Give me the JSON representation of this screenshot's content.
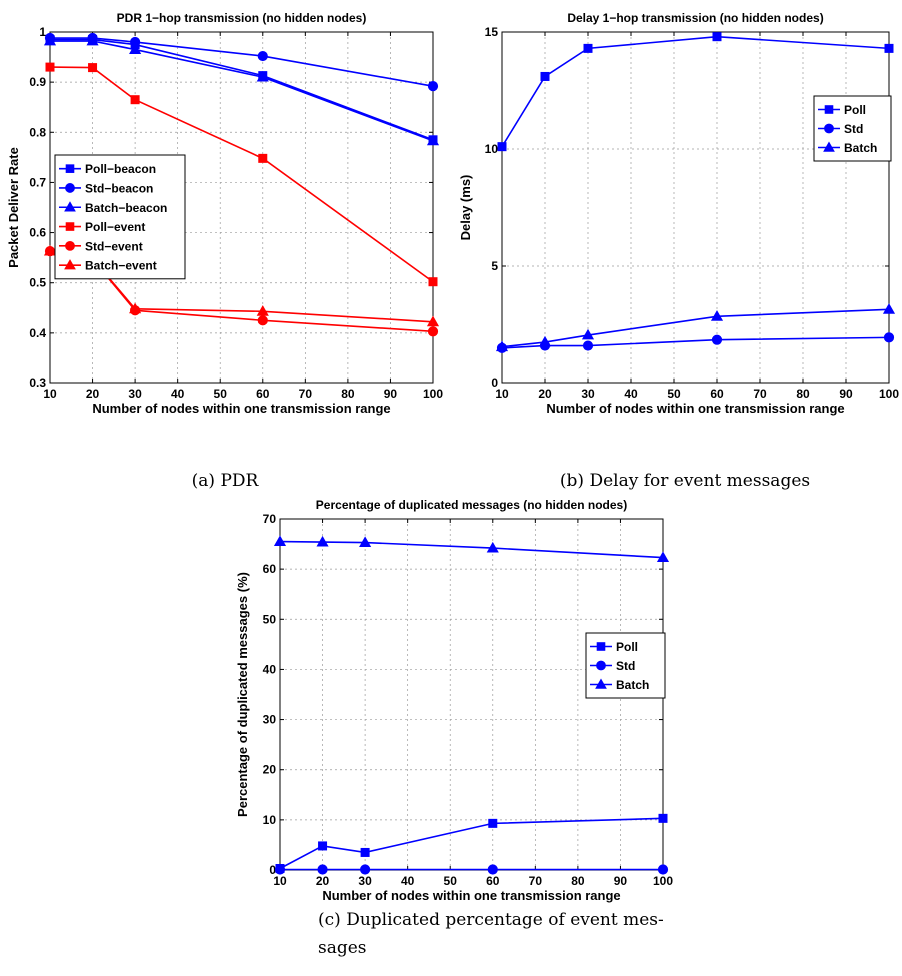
{
  "captions": {
    "a": "(a)  PDR",
    "b": "(b)  Delay for event messages",
    "c_line1": "(c)  Duplicated  percentage  of  event  mes-",
    "c_line2": "sages"
  },
  "chart_data": [
    {
      "id": "pdr",
      "type": "line",
      "title": "PDR 1−hop transmission (no hidden nodes)",
      "xlabel": "Number of nodes within one transmission range",
      "ylabel": "Packet Deliver Rate",
      "xlim": [
        10,
        100
      ],
      "ylim": [
        0.3,
        1
      ],
      "xticks": [
        10,
        20,
        30,
        40,
        50,
        60,
        70,
        80,
        90,
        100
      ],
      "yticks": [
        0.3,
        0.4,
        0.5,
        0.6,
        0.7,
        0.8,
        0.9,
        1
      ],
      "ytick_labels": [
        "0.3",
        "0.4",
        "0.5",
        "0.6",
        "0.7",
        "0.8",
        "0.9",
        "1"
      ],
      "grid": true,
      "legend_position": "middle-left",
      "x": [
        10,
        20,
        30,
        60,
        100
      ],
      "series": [
        {
          "name": "Poll−beacon",
          "color": "#0000ff",
          "marker": "square",
          "values": [
            0.985,
            0.985,
            0.975,
            0.913,
            0.785
          ]
        },
        {
          "name": "Std−beacon",
          "color": "#0000ff",
          "marker": "circle",
          "values": [
            0.988,
            0.988,
            0.98,
            0.952,
            0.892
          ]
        },
        {
          "name": "Batch−beacon",
          "color": "#0000ff",
          "marker": "triangle",
          "values": [
            0.982,
            0.982,
            0.965,
            0.91,
            0.783
          ]
        },
        {
          "name": "Poll−event",
          "color": "#ff0000",
          "marker": "square",
          "values": [
            0.93,
            0.929,
            0.865,
            0.748,
            0.502
          ]
        },
        {
          "name": "Std−event",
          "color": "#ff0000",
          "marker": "circle",
          "values": [
            0.563,
            0.547,
            0.445,
            0.425,
            0.403
          ]
        },
        {
          "name": "Batch−event",
          "color": "#ff0000",
          "marker": "triangle",
          "values": [
            0.563,
            0.548,
            0.448,
            0.443,
            0.422
          ]
        }
      ]
    },
    {
      "id": "delay",
      "type": "line",
      "title": "Delay 1−hop transmission (no hidden nodes)",
      "xlabel": "Number of nodes within one transmission range",
      "ylabel": "Delay (ms)",
      "xlim": [
        10,
        100
      ],
      "ylim": [
        0,
        15
      ],
      "xticks": [
        10,
        20,
        30,
        40,
        50,
        60,
        70,
        80,
        90,
        100
      ],
      "yticks": [
        0,
        5,
        10,
        15
      ],
      "ytick_labels": [
        "0",
        "5",
        "10",
        "15"
      ],
      "grid": true,
      "legend_position": "top-right",
      "x": [
        10,
        20,
        30,
        60,
        100
      ],
      "series": [
        {
          "name": "Poll",
          "color": "#0000ff",
          "marker": "square",
          "values": [
            10.1,
            13.1,
            14.3,
            14.8,
            14.3
          ]
        },
        {
          "name": "Std",
          "color": "#0000ff",
          "marker": "circle",
          "values": [
            1.5,
            1.6,
            1.6,
            1.85,
            1.95
          ]
        },
        {
          "name": "Batch",
          "color": "#0000ff",
          "marker": "triangle",
          "values": [
            1.55,
            1.75,
            2.05,
            2.85,
            3.15
          ]
        }
      ]
    },
    {
      "id": "dup",
      "type": "line",
      "title": "Percentage of duplicated messages (no hidden nodes)",
      "xlabel": "Number of nodes within one transmission range",
      "ylabel": "Percentage of duplicated messages (%)",
      "xlim": [
        10,
        100
      ],
      "ylim": [
        0,
        70
      ],
      "xticks": [
        10,
        20,
        30,
        40,
        50,
        60,
        70,
        80,
        90,
        100
      ],
      "yticks": [
        0,
        10,
        20,
        30,
        40,
        50,
        60,
        70
      ],
      "ytick_labels": [
        "0",
        "10",
        "20",
        "30",
        "40",
        "50",
        "60",
        "70"
      ],
      "grid": true,
      "legend_position": "middle-right",
      "x": [
        10,
        20,
        30,
        60,
        100
      ],
      "series": [
        {
          "name": "Poll",
          "color": "#0000ff",
          "marker": "square",
          "values": [
            0.3,
            4.8,
            3.5,
            9.3,
            10.3
          ]
        },
        {
          "name": "Std",
          "color": "#0000ff",
          "marker": "circle",
          "values": [
            0.1,
            0.1,
            0.1,
            0.1,
            0.1
          ]
        },
        {
          "name": "Batch",
          "color": "#0000ff",
          "marker": "triangle",
          "values": [
            65.5,
            65.4,
            65.3,
            64.2,
            62.3
          ]
        }
      ]
    }
  ]
}
